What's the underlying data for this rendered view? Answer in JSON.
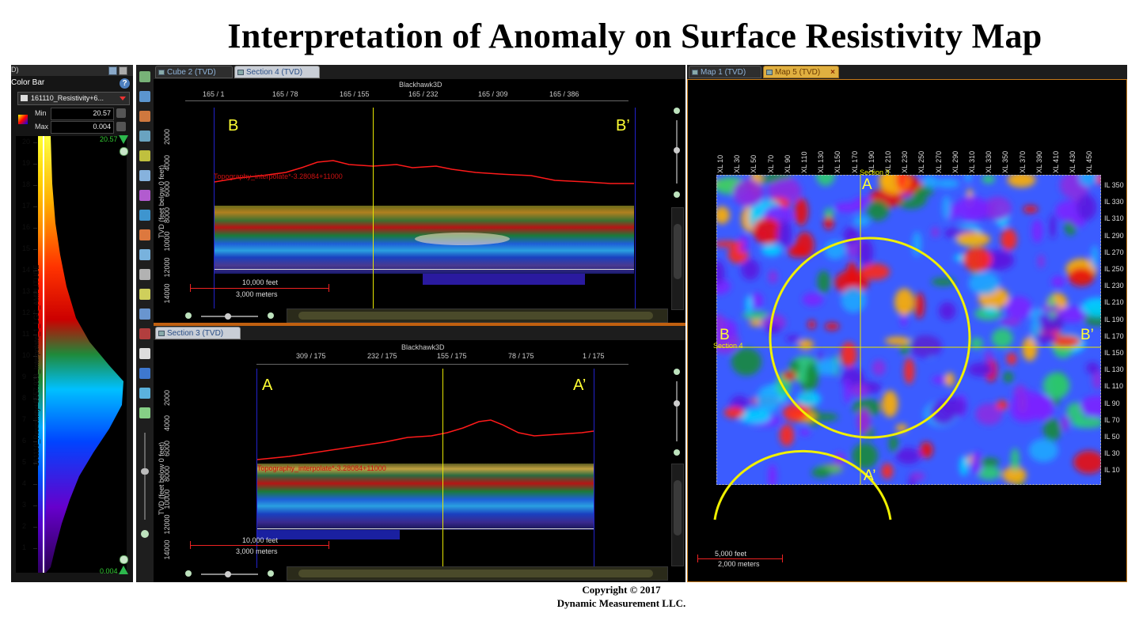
{
  "title": "Interpretation of Anomaly on Surface Resistivity Map",
  "copyright": {
    "line1": "Copyright  © 2017",
    "line2": "Dynamic Measurement LLC."
  },
  "colorbar_panel": {
    "header_fragment": "D)",
    "label": "Color Bar",
    "help_glyph": "?",
    "dataset": "161110_Resistivity+6...",
    "min_label": "Min",
    "min_value": "20.57",
    "max_label": "Max",
    "max_value": "0.004",
    "top_marker": "20.57",
    "bottom_marker": "0.004",
    "vertical_label": "161110_Resistivity+6557.928_Interpolate_1_LGC_AMPLITUDE",
    "ticks": [
      "20",
      "19",
      "18",
      "17",
      "16",
      "15",
      "14",
      "13",
      "12",
      "11",
      "10",
      "9",
      "8",
      "7",
      "6",
      "5",
      "4",
      "3",
      "2",
      "1"
    ],
    "ramp_colors": [
      "#ffff33",
      "#ffcc00",
      "#ff8800",
      "#ff2200",
      "#dd0000",
      "#228833",
      "#00aaff",
      "#0055ff",
      "#5500cc",
      "#330066"
    ]
  },
  "section4": {
    "tabs": [
      {
        "label": "Cube 2 (TVD)",
        "active": false
      },
      {
        "label": "Section 4 (TVD)",
        "active": true
      }
    ],
    "survey": "Blackhawk3D",
    "top_ticks": [
      "165 / 1",
      "165 / 78",
      "165 / 155",
      "165 / 232",
      "165 / 309",
      "165 / 386"
    ],
    "y_label": "TVD (feet below 0 feet)",
    "y_ticks": [
      "2000",
      "4000",
      "6000",
      "8000",
      "10000",
      "12000",
      "14000"
    ],
    "left_label": "B",
    "right_label": "B’",
    "topo_label": "Topography_interpolate*-3.28084+11000",
    "scale_feet": "10,000 feet",
    "scale_meters": "3,000 meters"
  },
  "section3": {
    "tabs": [
      {
        "label": "Section 3 (TVD)",
        "active": true
      }
    ],
    "survey": "Blackhawk3D",
    "top_ticks": [
      "309 / 175",
      "232 / 175",
      "155 / 175",
      "78 / 175",
      "1 / 175"
    ],
    "y_label": "TVD (feet below 0 feet)",
    "y_ticks": [
      "2000",
      "4000",
      "6000",
      "8000",
      "10000",
      "12000",
      "14000"
    ],
    "left_label": "A",
    "right_label": "A’",
    "topo_label": "Topography_interpolate*-3.28084+11000",
    "scale_feet": "10,000 feet",
    "scale_meters": "3,000 meters"
  },
  "map": {
    "tabs": [
      {
        "label": "Map 1 (TVD)",
        "active": false
      },
      {
        "label": "Map 5 (TVD)",
        "active": true
      }
    ],
    "close_glyph": "×",
    "xl_ticks": [
      "XL 10",
      "XL 30",
      "XL 50",
      "XL 70",
      "XL 90",
      "XL 110",
      "XL 130",
      "XL 150",
      "XL 170",
      "XL 190",
      "XL 210",
      "XL 230",
      "XL 250",
      "XL 270",
      "XL 290",
      "XL 310",
      "XL 330",
      "XL 350",
      "XL 370",
      "XL 390",
      "XL 410",
      "XL 430",
      "XL 450"
    ],
    "il_ticks": [
      "IL 350",
      "IL 330",
      "IL 310",
      "IL 290",
      "IL 270",
      "IL 250",
      "IL 230",
      "IL 210",
      "IL 190",
      "IL 170",
      "IL 150",
      "IL 130",
      "IL 110",
      "IL 90",
      "IL 70",
      "IL 50",
      "IL 30",
      "IL 10"
    ],
    "section3_label": "Section 3",
    "section4_label": "Section 4",
    "label_A": "A",
    "label_A_prime": "A’",
    "label_B": "B",
    "label_B_prime": "B’",
    "scale_feet": "5,000 feet",
    "scale_meters": "2,000 meters"
  },
  "colors": {
    "accent_yellow": "#ffff33",
    "topo_red": "#ff1a1a",
    "line_yellow": "#e6e600",
    "border_blue": "#2222aa"
  }
}
